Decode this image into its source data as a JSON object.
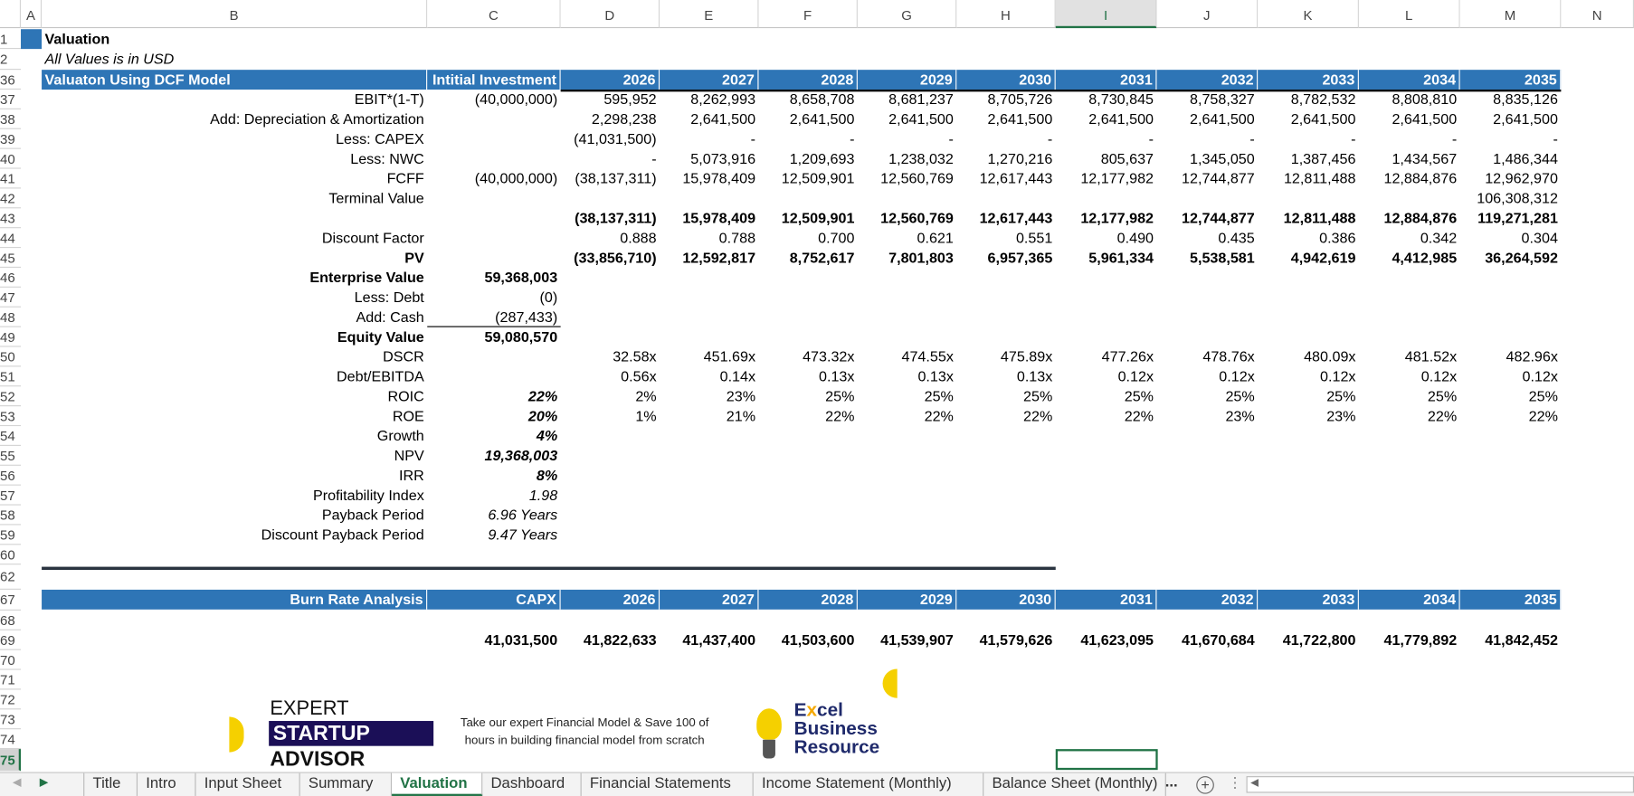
{
  "columns": [
    "A",
    "B",
    "C",
    "D",
    "E",
    "F",
    "G",
    "H",
    "I",
    "J",
    "K",
    "L",
    "M",
    "N"
  ],
  "selected_column": "I",
  "row_numbers": [
    "1",
    "2",
    "36",
    "37",
    "38",
    "39",
    "40",
    "41",
    "42",
    "43",
    "44",
    "45",
    "46",
    "47",
    "48",
    "49",
    "50",
    "51",
    "52",
    "53",
    "54",
    "55",
    "56",
    "57",
    "58",
    "59",
    "60",
    "62",
    "67",
    "68",
    "69",
    "70",
    "71",
    "72",
    "73",
    "74",
    "75"
  ],
  "selected_row": "75",
  "title": "Valuation",
  "subtitle": "All Values is in USD",
  "dcf": {
    "header": {
      "label": "Valuaton Using DCF Model",
      "initial": "Intitial Investment",
      "years": [
        "2026",
        "2027",
        "2028",
        "2029",
        "2030",
        "2031",
        "2032",
        "2033",
        "2034",
        "2035"
      ]
    },
    "rows": [
      {
        "label": "EBIT*(1-T)",
        "c": "(40,000,000)",
        "v": [
          "595,952",
          "8,262,993",
          "8,658,708",
          "8,681,237",
          "8,705,726",
          "8,730,845",
          "8,758,327",
          "8,782,532",
          "8,808,810",
          "8,835,126"
        ]
      },
      {
        "label": "Add: Depreciation & Amortization",
        "c": "",
        "v": [
          "2,298,238",
          "2,641,500",
          "2,641,500",
          "2,641,500",
          "2,641,500",
          "2,641,500",
          "2,641,500",
          "2,641,500",
          "2,641,500",
          "2,641,500"
        ]
      },
      {
        "label": "Less: CAPEX",
        "c": "",
        "v": [
          "(41,031,500)",
          "-",
          "-",
          "-",
          "-",
          "-",
          "-",
          "-",
          "-",
          "-"
        ]
      },
      {
        "label": "Less: NWC",
        "c": "",
        "v": [
          "-",
          "5,073,916",
          "1,209,693",
          "1,238,032",
          "1,270,216",
          "805,637",
          "1,345,050",
          "1,387,456",
          "1,434,567",
          "1,486,344"
        ]
      },
      {
        "label": "FCFF",
        "c": "(40,000,000)",
        "v": [
          "(38,137,311)",
          "15,978,409",
          "12,509,901",
          "12,560,769",
          "12,617,443",
          "12,177,982",
          "12,744,877",
          "12,811,488",
          "12,884,876",
          "12,962,970"
        ]
      },
      {
        "label": "Terminal Value",
        "c": "",
        "v": [
          "",
          "",
          "",
          "",
          "",
          "",
          "",
          "",
          "",
          "106,308,312"
        ]
      },
      {
        "label": "",
        "c": "",
        "bold": true,
        "v": [
          "(38,137,311)",
          "15,978,409",
          "12,509,901",
          "12,560,769",
          "12,617,443",
          "12,177,982",
          "12,744,877",
          "12,811,488",
          "12,884,876",
          "119,271,281"
        ]
      },
      {
        "label": "Discount Factor",
        "c": "",
        "v": [
          "0.888",
          "0.788",
          "0.700",
          "0.621",
          "0.551",
          "0.490",
          "0.435",
          "0.386",
          "0.342",
          "0.304"
        ]
      },
      {
        "label": "PV",
        "c": "",
        "bold": true,
        "labelbold": true,
        "v": [
          "(33,856,710)",
          "12,592,817",
          "8,752,617",
          "7,801,803",
          "6,957,365",
          "5,961,334",
          "5,538,581",
          "4,942,619",
          "4,412,985",
          "36,264,592"
        ]
      },
      {
        "label": "Enterprise Value",
        "c": "59,368,003",
        "labelbold": true,
        "cbold": true,
        "v": []
      },
      {
        "label": "Less: Debt",
        "c": "(0)",
        "v": []
      },
      {
        "label": "Add: Cash",
        "c": "(287,433)",
        "cul": true,
        "v": []
      },
      {
        "label": "Equity Value",
        "c": "59,080,570",
        "labelbold": true,
        "cbold": true,
        "v": []
      },
      {
        "label": "DSCR",
        "c": "",
        "v": [
          "32.58x",
          "451.69x",
          "473.32x",
          "474.55x",
          "475.89x",
          "477.26x",
          "478.76x",
          "480.09x",
          "481.52x",
          "482.96x"
        ]
      },
      {
        "label": "Debt/EBITDA",
        "c": "",
        "v": [
          "0.56x",
          "0.14x",
          "0.13x",
          "0.13x",
          "0.13x",
          "0.12x",
          "0.12x",
          "0.12x",
          "0.12x",
          "0.12x"
        ]
      },
      {
        "label": "ROIC",
        "c": "22%",
        "cbold": true,
        "citalic": true,
        "v": [
          "2%",
          "23%",
          "25%",
          "25%",
          "25%",
          "25%",
          "25%",
          "25%",
          "25%",
          "25%"
        ]
      },
      {
        "label": "ROE",
        "c": "20%",
        "cbold": true,
        "citalic": true,
        "v": [
          "1%",
          "21%",
          "22%",
          "22%",
          "22%",
          "22%",
          "23%",
          "23%",
          "22%",
          "22%"
        ]
      },
      {
        "label": "Growth",
        "c": "4%",
        "cbold": true,
        "citalic": true,
        "v": []
      },
      {
        "label": "NPV",
        "c": "19,368,003",
        "cbold": true,
        "citalic": true,
        "v": []
      },
      {
        "label": "IRR",
        "c": "8%",
        "cbold": true,
        "citalic": true,
        "v": []
      },
      {
        "label": "Profitability Index",
        "c": "1.98",
        "citalic": true,
        "v": []
      },
      {
        "label": "Payback Period",
        "c": "6.96 Years",
        "citalic": true,
        "v": []
      },
      {
        "label": "Discount Payback Period",
        "c": "9.47 Years",
        "citalic": true,
        "v": []
      }
    ]
  },
  "burn": {
    "header": {
      "label": "Burn Rate Analysis",
      "capx": "CAPX",
      "years": [
        "2026",
        "2027",
        "2028",
        "2029",
        "2030",
        "2031",
        "2032",
        "2033",
        "2034",
        "2035"
      ]
    },
    "values": {
      "capx": "41,031,500",
      "v": [
        "41,822,633",
        "41,437,400",
        "41,503,600",
        "41,539,907",
        "41,579,626",
        "41,623,095",
        "41,670,684",
        "41,722,800",
        "41,779,892",
        "41,842,452"
      ]
    }
  },
  "promo": {
    "esa_logo": "EXPERT STARTUP ADVISOR",
    "text": "Take our expert Financial Model & Save 100 of hours in building financial model from scratch",
    "ebr_logo": "Excel Business Resource"
  },
  "tabs": [
    {
      "label": "Title"
    },
    {
      "label": "Intro"
    },
    {
      "label": "Input Sheet"
    },
    {
      "label": "Summary"
    },
    {
      "label": "Valuation",
      "active": true
    },
    {
      "label": "Dashboard"
    },
    {
      "label": "Financial Statements"
    },
    {
      "label": "Income Statement (Monthly)"
    },
    {
      "label": "Balance Sheet (Monthly)"
    }
  ],
  "tab_more": "...",
  "colors": {
    "header_blue": "#2e75b6",
    "excel_green": "#217346",
    "esa_navy": "#1b0f57",
    "ebr_navy": "#1f2a6b",
    "accent_yellow": "#f5d000"
  }
}
